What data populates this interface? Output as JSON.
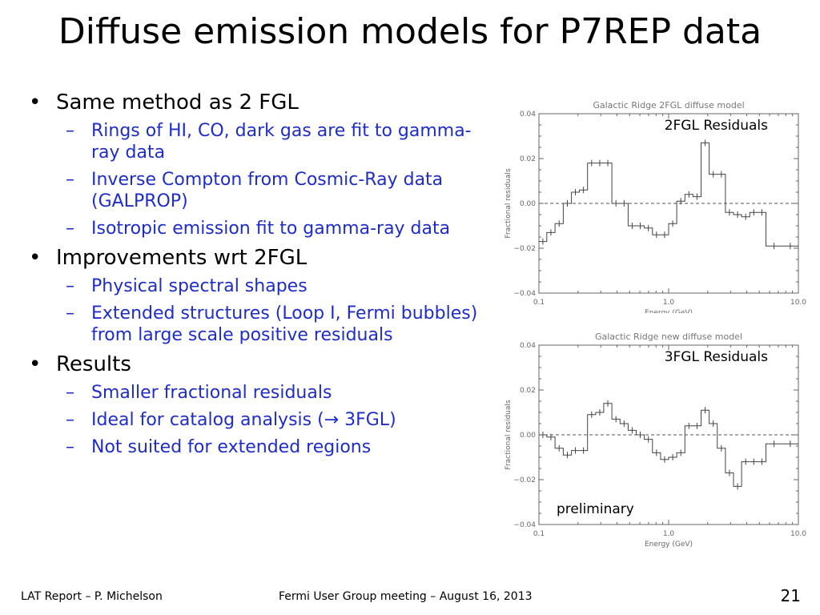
{
  "title": "Diffuse emission models for P7REP data",
  "bullets": [
    {
      "text": "Same method as 2 FGL",
      "subs": [
        "Rings of HI, CO, dark gas are fit to gamma-ray data",
        "Inverse Compton from Cosmic-Ray data (GALPROP)",
        "Isotropic emission fit to gamma-ray data"
      ]
    },
    {
      "text": "Improvements wrt 2FGL",
      "subs": [
        "Physical spectral shapes",
        "Extended structures (Loop I, Fermi bubbles) from large scale positive residuals"
      ]
    },
    {
      "text": "Results",
      "subs": [
        "Smaller fractional residuals",
        "Ideal for catalog analysis (→ 3FGL)",
        "Not suited for extended regions"
      ]
    }
  ],
  "bullet_glyph": "•",
  "sub_glyph": "–",
  "chart_data": [
    {
      "type": "step",
      "title": "Galactic Ridge  2FGL diffuse model",
      "annotation": "2FGL Residuals",
      "xlabel": "Energy (GeV)",
      "ylabel": "Fractional residuals",
      "xscale": "log",
      "xlim": [
        0.1,
        10.0
      ],
      "ylim": [
        -0.04,
        0.04
      ],
      "xticks": [
        "0.1",
        "1.0",
        "10.0"
      ],
      "yticks": [
        "0.04",
        "0.02",
        "0.00",
        "−0.02",
        "−0.04"
      ],
      "reference_line": 0.0,
      "bin_edges": [
        0.1,
        0.115,
        0.133,
        0.154,
        0.178,
        0.205,
        0.237,
        0.274,
        0.316,
        0.365,
        0.422,
        0.487,
        0.562,
        0.649,
        0.75,
        0.866,
        1.0,
        1.155,
        1.334,
        1.54,
        1.778,
        2.054,
        2.371,
        2.738,
        3.162,
        3.652,
        4.217,
        4.87,
        5.623,
        7.499,
        10.0
      ],
      "values": [
        -0.017,
        -0.013,
        -0.009,
        0.0,
        0.005,
        0.006,
        0.018,
        0.018,
        0.018,
        0.0,
        0.0,
        -0.01,
        -0.01,
        -0.011,
        -0.014,
        -0.014,
        -0.009,
        0.001,
        0.004,
        0.003,
        0.027,
        0.013,
        0.013,
        -0.004,
        -0.005,
        -0.006,
        -0.004,
        -0.004,
        -0.019,
        -0.019
      ]
    },
    {
      "type": "step",
      "title": "Galactic Ridge  new diffuse model",
      "annotation": "3FGL Residuals",
      "annotation2": "preliminary",
      "xlabel": "Energy (GeV)",
      "ylabel": "Fractional residuals",
      "xscale": "log",
      "xlim": [
        0.1,
        10.0
      ],
      "ylim": [
        -0.04,
        0.04
      ],
      "xticks": [
        "0.1",
        "1.0",
        "10.0"
      ],
      "yticks": [
        "0.04",
        "0.02",
        "0.00",
        "−0.02",
        "−0.04"
      ],
      "reference_line": 0.0,
      "bin_edges": [
        0.1,
        0.115,
        0.133,
        0.154,
        0.178,
        0.205,
        0.237,
        0.274,
        0.316,
        0.365,
        0.422,
        0.487,
        0.562,
        0.649,
        0.75,
        0.866,
        1.0,
        1.155,
        1.334,
        1.54,
        1.778,
        2.054,
        2.371,
        2.738,
        3.162,
        3.652,
        4.217,
        4.87,
        5.623,
        7.499,
        10.0
      ],
      "values": [
        0.0,
        -0.001,
        -0.006,
        -0.009,
        -0.007,
        -0.007,
        0.009,
        0.01,
        0.014,
        0.007,
        0.005,
        0.002,
        0.0,
        -0.002,
        -0.008,
        -0.011,
        -0.01,
        -0.008,
        0.004,
        0.004,
        0.011,
        0.005,
        -0.006,
        -0.017,
        -0.023,
        -0.012,
        -0.012,
        -0.012,
        -0.004,
        -0.004
      ]
    }
  ],
  "footer": {
    "left": "LAT Report – P. Michelson",
    "center": "Fermi User Group meeting – August 16, 2013",
    "page": "21"
  }
}
